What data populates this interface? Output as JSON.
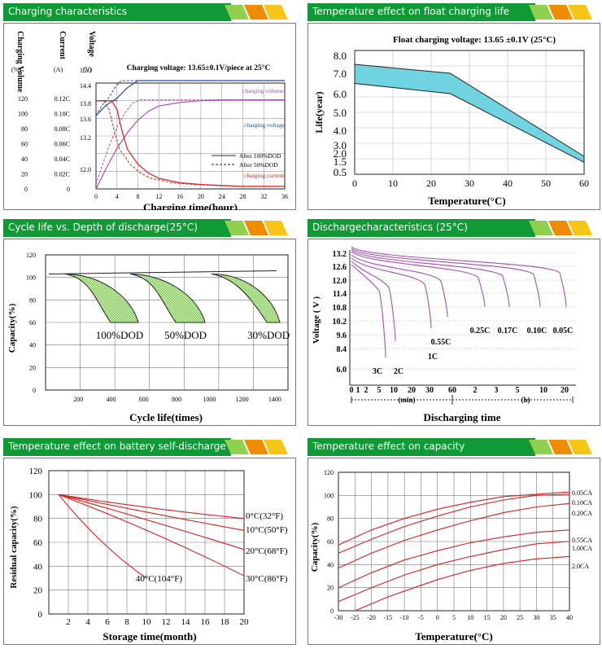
{
  "colors": {
    "header": "#0f9a35",
    "tab_yellow": "#f5c518",
    "tab_orange": "#f08c00",
    "tab_green": "#8fd14f",
    "curve_red": "#d82020",
    "curve_purple": "#a050b0",
    "curve_blue": "#2050a0",
    "hatch_green": "#6abf3a",
    "fill_cyan": "#6fd4e0"
  },
  "panels": {
    "p1": {
      "title": "Charging characteristics"
    },
    "p2": {
      "title": "Temperature effect on float charging life"
    },
    "p3": {
      "title": "Cycle life vs. Depth of discharge(25°C)"
    },
    "p4": {
      "title": "Dischargecharacteristics (25°C)"
    },
    "p5": {
      "title": "Temperature effect on battery self-discharge"
    },
    "p6": {
      "title": "Temperature effect on capacity"
    }
  },
  "chart_data": [
    {
      "type": "line",
      "title": "Charging voltage: 13.65±0.1V/piece at 25°C",
      "xlabel": "Charging time(hour)",
      "x_ticks": [
        "0",
        "4",
        "8",
        "12",
        "16",
        "20",
        "24",
        "28",
        "32",
        "36"
      ],
      "y_axes": [
        {
          "label": "Charging Volume",
          "unit": "(%)",
          "ticks": [
            "0",
            "20",
            "40",
            "60",
            "80",
            "100",
            "120"
          ]
        },
        {
          "label": "Current",
          "unit": "(A)",
          "ticks": [
            "0",
            "0.02C",
            "0.04C",
            "0.06C",
            "0.08C",
            "0.10C",
            "0.12C"
          ]
        },
        {
          "label": "Voltage",
          "unit": "(V)",
          "ticks": [
            "12.0",
            "13.2",
            "13.6",
            "13.8",
            "14.4",
            "15.0"
          ]
        }
      ],
      "series": [
        {
          "name": "charging volume",
          "axis": "volume",
          "x": [
            0,
            2,
            4,
            6,
            8,
            10,
            12,
            16,
            20,
            24,
            28,
            32,
            36
          ],
          "y": [
            0,
            24,
            46,
            64,
            78,
            88,
            94,
            98,
            100,
            101,
            101,
            101,
            101
          ]
        },
        {
          "name": "charging voltage",
          "axis": "voltage",
          "x": [
            0,
            2,
            4,
            6,
            8,
            10,
            12,
            16,
            20,
            24,
            28,
            32,
            36
          ],
          "y": [
            13.4,
            13.7,
            13.9,
            14.2,
            14.4,
            14.4,
            14.4,
            14.4,
            14.4,
            14.4,
            14.4,
            14.4,
            14.4
          ]
        },
        {
          "name": "charging current",
          "axis": "current",
          "x": [
            0,
            3,
            4,
            5,
            6,
            8,
            10,
            12,
            16,
            20,
            24,
            28,
            32,
            36
          ],
          "y": [
            0.1,
            0.1,
            0.09,
            0.065,
            0.045,
            0.028,
            0.018,
            0.012,
            0.007,
            0.005,
            0.004,
            0.003,
            0.003,
            0.003
          ]
        }
      ],
      "legend": [
        "After 100%DOD",
        "After 50%DOD"
      ],
      "series_labels": [
        "charging volume",
        "charging voltage",
        "charging current"
      ]
    },
    {
      "type": "area",
      "title": "Float charging voltage: 13.65 ±0.1V (25°C)",
      "xlabel": "Temperature(°C)",
      "ylabel": "Life(year)",
      "x_ticks": [
        "0",
        "10",
        "20",
        "30",
        "40",
        "50",
        "60"
      ],
      "y_ticks": [
        "0.5",
        "1.5",
        "2.0",
        "3.0",
        "4.0",
        "5.0",
        "6.0",
        "7.0",
        "8.0"
      ],
      "band_upper": {
        "x": [
          0,
          25,
          60
        ],
        "y": [
          7.5,
          7.0,
          1.8
        ]
      },
      "band_lower": {
        "x": [
          0,
          25,
          60
        ],
        "y": [
          6.5,
          6.0,
          1.4
        ]
      }
    },
    {
      "type": "area",
      "xlabel": "Cycle life(times)",
      "ylabel": "Capacity(%)",
      "x_ticks": [
        "200",
        "400",
        "600",
        "800",
        "1000",
        "1200",
        "1400"
      ],
      "y_ticks": [
        "0",
        "20",
        "40",
        "60",
        "80",
        "100",
        "120"
      ],
      "bands": [
        {
          "label": "100%DOD",
          "start": 100,
          "end_min": 380,
          "end_max": 550
        },
        {
          "label": "50%DOD",
          "start": 500,
          "end_min": 780,
          "end_max": 960
        },
        {
          "label": "30%DOD",
          "start": 1000,
          "end_min": 1340,
          "end_max": 1420
        }
      ]
    },
    {
      "type": "line",
      "xlabel": "Discharging time",
      "ylabel": "Voltage ( V )",
      "x_ticks_min": [
        "0",
        "1",
        "2",
        "5",
        "10",
        "20",
        "30",
        "60"
      ],
      "x_ticks_h": [
        "2",
        "3",
        "5",
        "10",
        "20"
      ],
      "x_units": [
        "(min)",
        "(h)"
      ],
      "y_ticks": [
        "6.0",
        "8.4",
        "9.6",
        "10.2",
        "10.8",
        "11.4",
        "12.0",
        "12.6",
        "13.2"
      ],
      "series": [
        {
          "name": "3C",
          "end_label": "3C"
        },
        {
          "name": "2C",
          "end_label": "2C"
        },
        {
          "name": "1C",
          "end_label": "1C"
        },
        {
          "name": "0.55C",
          "end_label": "0.55C"
        },
        {
          "name": "0.25C",
          "end_label": "0.25C"
        },
        {
          "name": "0.17C",
          "end_label": "0.17C"
        },
        {
          "name": "0.10C",
          "end_label": "0.10C"
        },
        {
          "name": "0.05C",
          "end_label": "0.05C"
        }
      ]
    },
    {
      "type": "line",
      "xlabel": "Storage time(month)",
      "ylabel": "Residual capacity(%)",
      "x_ticks": [
        "2",
        "4",
        "6",
        "8",
        "10",
        "12",
        "14",
        "16",
        "18",
        "20"
      ],
      "y_ticks": [
        "0",
        "20",
        "40",
        "60",
        "80",
        "100",
        "120"
      ],
      "series": [
        {
          "name": "0°C(32°F)",
          "x": [
            0,
            20
          ],
          "y": [
            100,
            80
          ]
        },
        {
          "name": "10°C(50°F)",
          "x": [
            0,
            20
          ],
          "y": [
            100,
            70
          ]
        },
        {
          "name": "20°C(68°F)",
          "x": [
            0,
            20
          ],
          "y": [
            100,
            54
          ]
        },
        {
          "name": "30°C(86°F)",
          "x": [
            0,
            20
          ],
          "y": [
            100,
            32
          ]
        },
        {
          "name": "40°C(104°F)",
          "x": [
            0,
            10
          ],
          "y": [
            100,
            30
          ]
        }
      ]
    },
    {
      "type": "line",
      "xlabel": "Temperature(°C)",
      "ylabel": "Capacity(%)",
      "x_ticks": [
        "-30",
        "-25",
        "-20",
        "-15",
        "-10",
        "-5",
        "0",
        "5",
        "10",
        "15",
        "20",
        "25",
        "30",
        "35",
        "40"
      ],
      "y_ticks": [
        "0",
        "20",
        "40",
        "60",
        "80",
        "100",
        "120"
      ],
      "series": [
        {
          "name": "0.05CA",
          "x": [
            -30,
            -20,
            -10,
            0,
            10,
            20,
            30,
            40
          ],
          "y": [
            57,
            70,
            80,
            88,
            94,
            99,
            101,
            103
          ]
        },
        {
          "name": "0.10CA",
          "x": [
            -30,
            -20,
            -10,
            0,
            10,
            20,
            30,
            40
          ],
          "y": [
            50,
            62,
            73,
            82,
            90,
            96,
            100,
            101
          ]
        },
        {
          "name": "0.20CA",
          "x": [
            -30,
            -20,
            -10,
            0,
            10,
            20,
            30,
            40
          ],
          "y": [
            37,
            50,
            61,
            70,
            78,
            85,
            90,
            93
          ]
        },
        {
          "name": "0.55CA",
          "x": [
            -30,
            -20,
            -10,
            0,
            10,
            20,
            30,
            40
          ],
          "y": [
            20,
            33,
            44,
            52,
            59,
            64,
            68,
            70
          ]
        },
        {
          "name": "1.00CA",
          "x": [
            -30,
            -20,
            -10,
            0,
            10,
            20,
            30,
            40
          ],
          "y": [
            8,
            20,
            31,
            40,
            47,
            53,
            58,
            60
          ]
        },
        {
          "name": "2.0CA",
          "x": [
            -25,
            -15,
            -5,
            0,
            10,
            20,
            30,
            40
          ],
          "y": [
            0,
            12,
            22,
            27,
            35,
            41,
            45,
            47
          ]
        }
      ]
    }
  ]
}
